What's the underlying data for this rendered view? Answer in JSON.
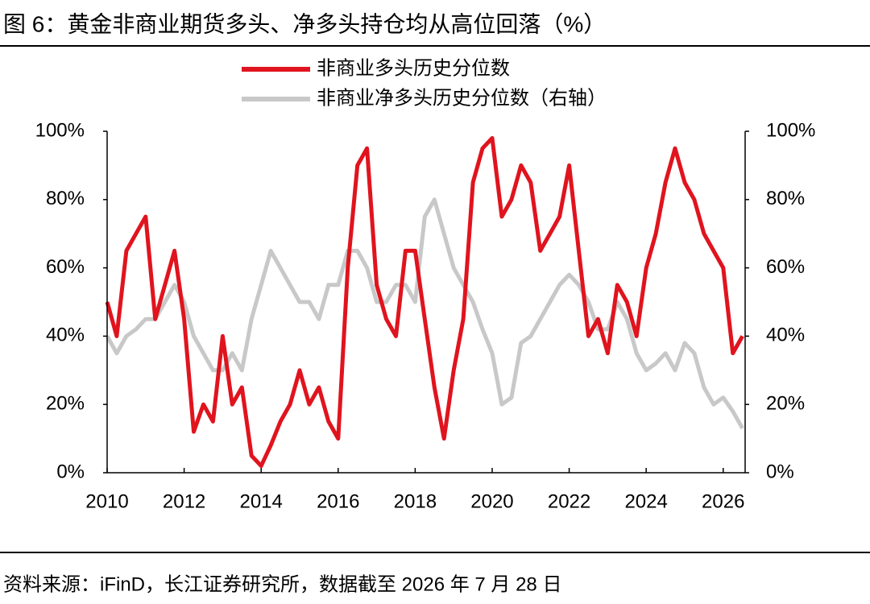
{
  "chart_data": {
    "type": "line",
    "title": "图 6：黄金非商业期货多头、净多头持仓均从高位回落（%）",
    "source": "资料来源：iFinD，长江证券研究所，数据截至 2026 年 7 月 28 日",
    "x": [
      2010,
      2010.25,
      2010.5,
      2010.75,
      2011,
      2011.25,
      2011.5,
      2011.75,
      2012,
      2012.25,
      2012.5,
      2012.75,
      2013,
      2013.25,
      2013.5,
      2013.75,
      2014,
      2014.25,
      2014.5,
      2014.75,
      2015,
      2015.25,
      2015.5,
      2015.75,
      2016,
      2016.25,
      2016.5,
      2016.75,
      2017,
      2017.25,
      2017.5,
      2017.75,
      2018,
      2018.25,
      2018.5,
      2018.75,
      2019,
      2019.25,
      2019.5,
      2019.75,
      2020,
      2020.25,
      2020.5,
      2020.75,
      2021,
      2021.25,
      2021.5,
      2021.75,
      2022,
      2022.25,
      2022.5,
      2022.75,
      2023,
      2023.25,
      2023.5,
      2023.75,
      2024,
      2024.25,
      2024.5,
      2024.75,
      2025,
      2025.25,
      2025.5,
      2025.75,
      2026,
      2026.25,
      2026.5
    ],
    "series": [
      {
        "name": "非商业多头历史分位数",
        "color": "#e0141e",
        "axis": "y",
        "values": [
          50,
          40,
          65,
          70,
          75,
          45,
          55,
          65,
          45,
          12,
          20,
          15,
          40,
          20,
          25,
          5,
          2,
          8,
          15,
          20,
          30,
          20,
          25,
          15,
          10,
          60,
          90,
          95,
          55,
          45,
          40,
          65,
          65,
          45,
          25,
          10,
          30,
          45,
          85,
          95,
          98,
          75,
          80,
          90,
          85,
          65,
          70,
          75,
          90,
          65,
          40,
          45,
          35,
          55,
          50,
          40,
          60,
          70,
          85,
          95,
          85,
          80,
          70,
          65,
          60,
          35,
          40
        ]
      },
      {
        "name": "非商业净多头历史分位数（右轴）",
        "color": "#c8c8c8",
        "axis": "y2",
        "values": [
          40,
          35,
          40,
          42,
          45,
          45,
          50,
          55,
          50,
          40,
          35,
          30,
          30,
          35,
          30,
          45,
          55,
          65,
          60,
          55,
          50,
          50,
          45,
          55,
          55,
          65,
          65,
          60,
          50,
          50,
          55,
          55,
          50,
          75,
          80,
          70,
          60,
          55,
          50,
          42,
          35,
          20,
          22,
          38,
          40,
          45,
          50,
          55,
          58,
          55,
          50,
          42,
          42,
          50,
          45,
          35,
          30,
          32,
          35,
          30,
          38,
          35,
          25,
          20,
          22,
          18,
          13
        ]
      }
    ],
    "xlim": [
      2010,
      2026.57
    ],
    "xticks": [
      2010,
      2012,
      2014,
      2016,
      2018,
      2020,
      2022,
      2024,
      2026
    ],
    "ylim": [
      0,
      100
    ],
    "yticks": [
      {
        "value": 0,
        "label": "0%"
      },
      {
        "value": 20,
        "label": "20%"
      },
      {
        "value": 40,
        "label": "40%"
      },
      {
        "value": 60,
        "label": "60%"
      },
      {
        "value": 80,
        "label": "80%"
      },
      {
        "value": 100,
        "label": "100%"
      }
    ],
    "y2lim": [
      0,
      100
    ],
    "y2ticks": [
      {
        "value": 0,
        "label": "0%"
      },
      {
        "value": 20,
        "label": "20%"
      },
      {
        "value": 40,
        "label": "40%"
      },
      {
        "value": 60,
        "label": "60%"
      },
      {
        "value": 80,
        "label": "80%"
      },
      {
        "value": 100,
        "label": "100%"
      }
    ]
  }
}
